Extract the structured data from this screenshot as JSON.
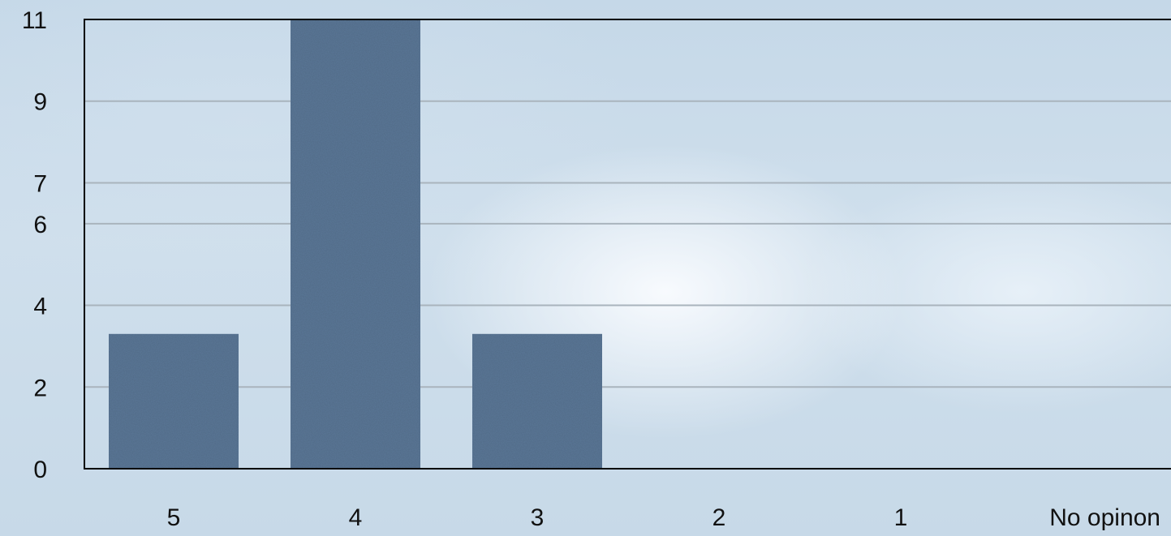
{
  "chart_data": {
    "type": "bar",
    "categories": [
      "5",
      "4",
      "3",
      "2",
      "1",
      "No opinon"
    ],
    "values": [
      3.3,
      11,
      3.3,
      0,
      0,
      0
    ],
    "yticks": [
      "0",
      "2",
      "4",
      "6",
      "7",
      "9",
      "11"
    ],
    "ylim": [
      0,
      11
    ],
    "grid": true,
    "bar_color": "#5b7898",
    "title": "",
    "xlabel": "",
    "ylabel": ""
  }
}
